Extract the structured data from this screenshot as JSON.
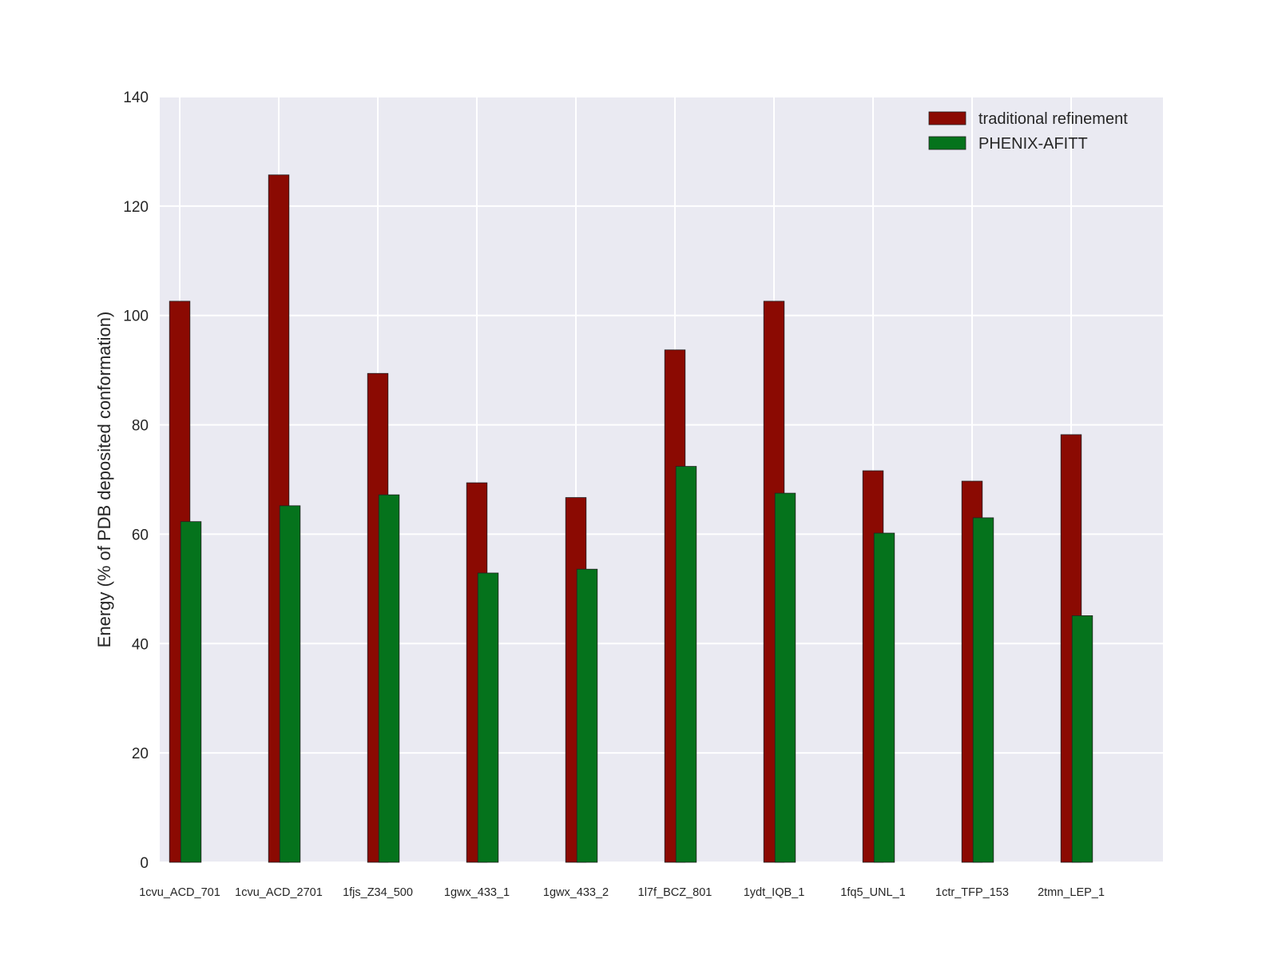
{
  "chart_data": {
    "type": "bar",
    "title": "",
    "xlabel": "",
    "ylabel": "Energy (% of PDB deposited conformation)",
    "ylim": [
      0,
      140
    ],
    "yticks": [
      0,
      20,
      40,
      60,
      80,
      100,
      120,
      140
    ],
    "grid": true,
    "legend_position": "top-right",
    "categories": [
      "1cvu_ACD_701",
      "1cvu_ACD_2701",
      "1fjs_Z34_500",
      "1gwx_433_1",
      "1gwx_433_2",
      "1l7f_BCZ_801",
      "1ydt_IQB_1",
      "1fq5_UNL_1",
      "1ctr_TFP_153",
      "2tmn_LEP_1"
    ],
    "series": [
      {
        "name": "traditional refinement",
        "color": "#8b0a02",
        "values": [
          102.6,
          125.7,
          89.4,
          69.4,
          66.7,
          93.7,
          102.6,
          71.6,
          69.7,
          78.2
        ]
      },
      {
        "name": "PHENIX-AFITT",
        "color": "#05731c",
        "values": [
          62.3,
          65.2,
          67.2,
          52.9,
          53.6,
          72.4,
          67.5,
          60.2,
          63.0,
          45.1
        ]
      }
    ],
    "background": "#eaeaf2"
  }
}
